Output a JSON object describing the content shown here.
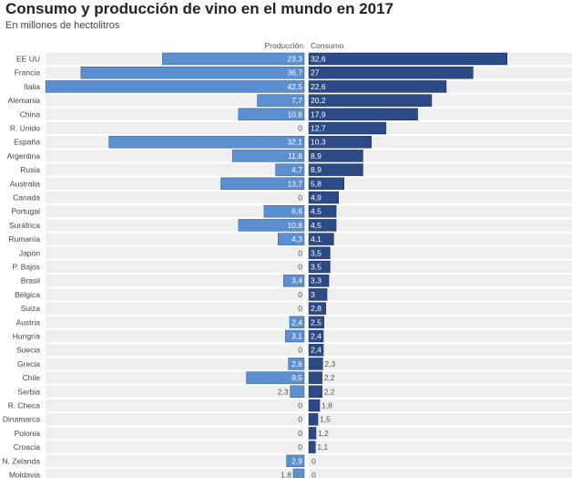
{
  "chart_data": {
    "type": "bar",
    "title": "Consumo y producción de vino en el mundo en 2017",
    "subtitle": "En millones de hectolitros",
    "categories": [
      "EE UU",
      "Francia",
      "Italia",
      "Alemania",
      "China",
      "R. Unido",
      "España",
      "Argentina",
      "Rusia",
      "Australia",
      "Canadá",
      "Portugal",
      "Suráfrica",
      "Rumanía",
      "Japón",
      "P. Bajos",
      "Brasil",
      "Bélgica",
      "Suiza",
      "Austria",
      "Hungría",
      "Suecia",
      "Grecia",
      "Chile",
      "Serbia",
      "R. Checa",
      "Dinamarca",
      "Polonia",
      "Croacia",
      "N. Zelanda",
      "Moldavia"
    ],
    "series": [
      {
        "name": "Producción",
        "color": "#5b8fcf",
        "values": [
          23.3,
          36.7,
          42.5,
          7.7,
          10.8,
          0,
          32.1,
          11.8,
          4.7,
          13.7,
          0,
          6.6,
          10.8,
          4.3,
          0,
          0,
          3.4,
          0,
          0,
          2.4,
          3.1,
          0,
          2.6,
          9.5,
          2.3,
          0,
          0,
          0,
          0,
          2.9,
          1.8
        ]
      },
      {
        "name": "Consumo",
        "color": "#2c4a86",
        "values": [
          32.6,
          27,
          22.6,
          20.2,
          17.9,
          12.7,
          10.3,
          8.9,
          8.9,
          5.8,
          4.9,
          4.5,
          4.5,
          4.1,
          3.5,
          3.5,
          3.3,
          3,
          2.8,
          2.5,
          2.4,
          2.4,
          2.3,
          2.2,
          2.2,
          1.8,
          1.5,
          1.2,
          1.1,
          0,
          0
        ]
      }
    ],
    "row_background": "#efefef"
  }
}
